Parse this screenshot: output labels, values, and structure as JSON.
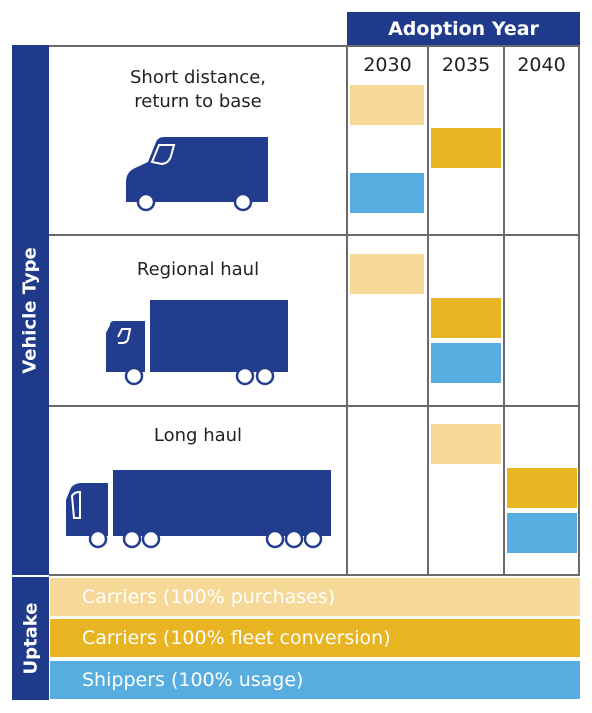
{
  "header": {
    "title": "Adoption Year"
  },
  "years": [
    "2030",
    "2035",
    "2040"
  ],
  "axis": {
    "vehicle_type": "Vehicle Type",
    "uptake": "Uptake"
  },
  "vehicles": [
    {
      "label_lines": [
        "Short distance,",
        "return to base"
      ],
      "icon": "delivery-van-icon"
    },
    {
      "label": "Regional haul",
      "icon": "box-truck-icon"
    },
    {
      "label": "Long haul",
      "icon": "semi-truck-icon"
    }
  ],
  "legend": [
    {
      "label": "Carriers (100% purchases)",
      "color": "#f6d898"
    },
    {
      "label": "Carriers (100% fleet conversion)",
      "color": "#e8b421"
    },
    {
      "label": "Shippers (100% usage)",
      "color": "#58ade0"
    }
  ],
  "timeline": {
    "short_distance": {
      "carriers_purchases": "2030",
      "carriers_fleet_conversion": "2035",
      "shippers_usage": "2030"
    },
    "regional_haul": {
      "carriers_purchases": "2030",
      "carriers_fleet_conversion": "2035",
      "shippers_usage": "2035"
    },
    "long_haul": {
      "carriers_purchases": "2035",
      "carriers_fleet_conversion": "2040",
      "shippers_usage": "2040"
    }
  },
  "colors": {
    "navy": "#1f3a8a",
    "truck": "#233d8e"
  }
}
